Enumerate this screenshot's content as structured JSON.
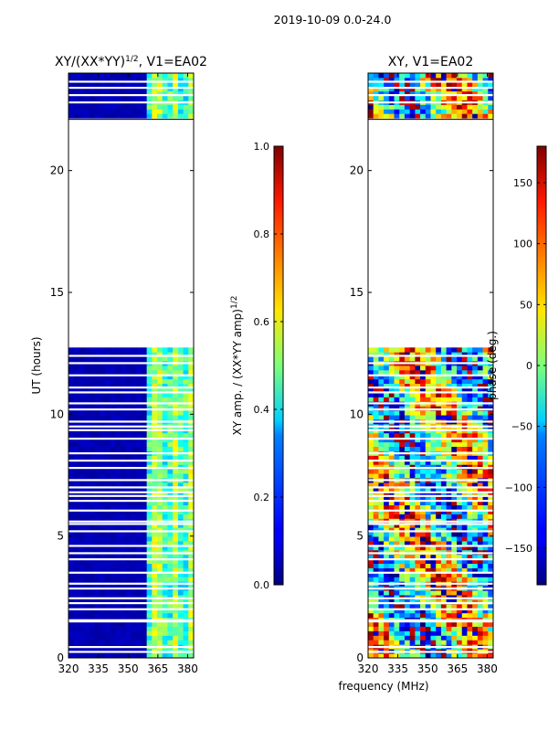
{
  "figure": {
    "suptitle": "2019-10-09 0.0-24.0",
    "xlabel": "frequency (MHz)"
  },
  "chart_data": [
    {
      "type": "heatmap",
      "title_main": "XY/(XX*YY)",
      "title_sup": "1/2",
      "title_tail": ", V1=EA02",
      "xlabel": "frequency (MHz)",
      "ylabel": "UT (hours)",
      "xlim": [
        320,
        383
      ],
      "ylim": [
        0,
        24
      ],
      "xticks": [
        320,
        335,
        350,
        365,
        380
      ],
      "yticks": [
        0,
        5,
        10,
        15,
        20
      ],
      "data_coverage_hours": [
        [
          0,
          12.8
        ],
        [
          22.1,
          24
        ]
      ],
      "gap_hours": [
        12.8,
        22.1
      ],
      "colorbar": {
        "label_main": "XY amp. / (XX*YY amp)",
        "label_sup": "1/2",
        "range": [
          0.0,
          1.0
        ],
        "ticks": [
          0.0,
          0.2,
          0.4,
          0.6,
          0.8,
          1.0
        ],
        "tick_labels": [
          "0.0",
          "0.2",
          "0.4",
          "0.6",
          "0.8",
          "1.0"
        ]
      }
    },
    {
      "type": "heatmap",
      "title_main": "XY, V1=EA02",
      "xlabel": "frequency (MHz)",
      "ylabel": "",
      "xlim": [
        320,
        383
      ],
      "ylim": [
        0,
        24
      ],
      "xticks": [
        320,
        335,
        350,
        365,
        380
      ],
      "yticks": [
        0,
        5,
        10,
        15,
        20
      ],
      "data_coverage_hours": [
        [
          0,
          12.8
        ],
        [
          22.1,
          24
        ]
      ],
      "gap_hours": [
        12.8,
        22.1
      ],
      "colorbar": {
        "label_main": "phase (deg.)",
        "range": [
          -180,
          180
        ],
        "ticks": [
          -150,
          -100,
          -50,
          0,
          50,
          100,
          150
        ],
        "tick_labels": [
          "−150",
          "−100",
          "−50",
          "0",
          "50",
          "100",
          "150"
        ]
      }
    }
  ]
}
